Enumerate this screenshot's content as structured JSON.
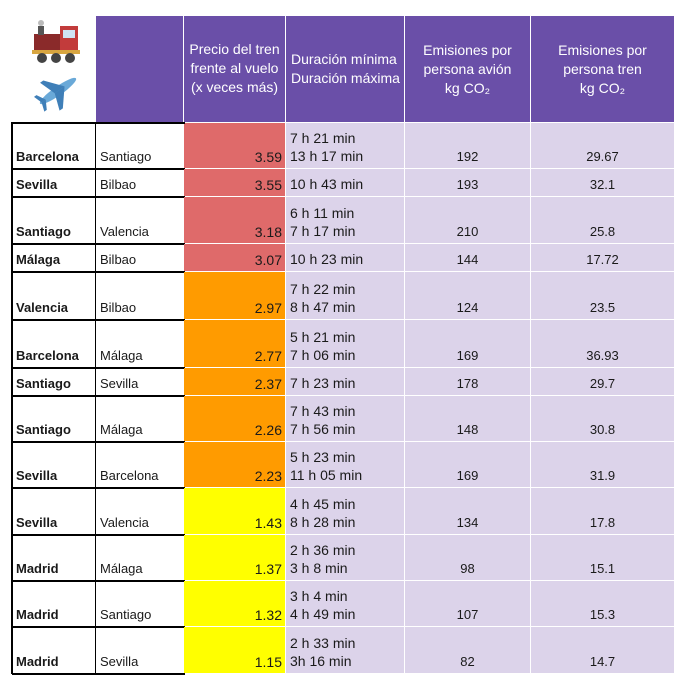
{
  "header": {
    "icons": [
      "train-icon",
      "airplane-icon"
    ],
    "col_ratio": [
      "Precio del tren",
      "frente al vuelo",
      "(x veces más)"
    ],
    "col_duration": [
      "Duración mínima",
      "Duración máxima"
    ],
    "col_plane": [
      "Emisiones por",
      "persona avión",
      "kg CO₂"
    ],
    "col_train": [
      "Emisiones por",
      "persona tren",
      "kg CO₂"
    ]
  },
  "rows": [
    {
      "from": "Barcelona",
      "to": "Santiago",
      "ratio": "3.59",
      "dmin": "7 h 21 min",
      "dmax": "13 h 17 min",
      "plane": "192",
      "train": "29.67",
      "color": "red"
    },
    {
      "from": "Sevilla",
      "to": "Bilbao",
      "ratio": "3.55",
      "dmin": "",
      "dmax": "10 h 43 min",
      "plane": "193",
      "train": "32.1",
      "color": "red"
    },
    {
      "from": "Santiago",
      "to": "Valencia",
      "ratio": "3.18",
      "dmin": "6 h 11 min",
      "dmax": "7 h 17 min",
      "plane": "210",
      "train": "25.8",
      "color": "red"
    },
    {
      "from": "Málaga",
      "to": "Bilbao",
      "ratio": "3.07",
      "dmin": "",
      "dmax": "10 h 23 min",
      "plane": "144",
      "train": "17.72",
      "color": "red"
    },
    {
      "from": "Valencia",
      "to": "Bilbao",
      "ratio": "2.97",
      "dmin": "7 h 22 min",
      "dmax": "8 h 47 min",
      "plane": "124",
      "train": "23.5",
      "color": "orange"
    },
    {
      "from": "Barcelona",
      "to": "Málaga",
      "ratio": "2.77",
      "dmin": "5 h 21 min",
      "dmax": "7 h 06 min",
      "plane": "169",
      "train": "36.93",
      "color": "orange"
    },
    {
      "from": "Santiago",
      "to": "Sevilla",
      "ratio": "2.37",
      "dmin": "",
      "dmax": "7 h 23 min",
      "plane": "178",
      "train": "29.7",
      "color": "orange"
    },
    {
      "from": "Santiago",
      "to": "Málaga",
      "ratio": "2.26",
      "dmin": "7 h 43 min",
      "dmax": "7 h 56 min",
      "plane": "148",
      "train": "30.8",
      "color": "orange"
    },
    {
      "from": "Sevilla",
      "to": "Barcelona",
      "ratio": "2.23",
      "dmin": "5 h 23 min",
      "dmax": "11 h 05 min",
      "plane": "169",
      "train": "31.9",
      "color": "orange"
    },
    {
      "from": "Sevilla",
      "to": "Valencia",
      "ratio": "1.43",
      "dmin": "4 h 45 min",
      "dmax": "8 h 28 min",
      "plane": "134",
      "train": "17.8",
      "color": "yellow"
    },
    {
      "from": "Madrid",
      "to": "Málaga",
      "ratio": "1.37",
      "dmin": "2 h 36 min",
      "dmax": "3 h 8 min",
      "plane": "98",
      "train": "15.1",
      "color": "yellow"
    },
    {
      "from": "Madrid",
      "to": "Santiago",
      "ratio": "1.32",
      "dmin": "3 h 4 min",
      "dmax": "4 h 49 min",
      "plane": "107",
      "train": "15.3",
      "color": "yellow"
    },
    {
      "from": "Madrid",
      "to": "Sevilla",
      "ratio": "1.15",
      "dmin": "2 h 33 min",
      "dmax": "3h 16 min",
      "plane": "82",
      "train": "14.7",
      "color": "yellow"
    }
  ],
  "colors": {
    "header": "#6a4fa8",
    "red": "#df6a6a",
    "orange": "#ff9b00",
    "yellow": "#ffff00",
    "lavender": "#dcd3ea"
  }
}
